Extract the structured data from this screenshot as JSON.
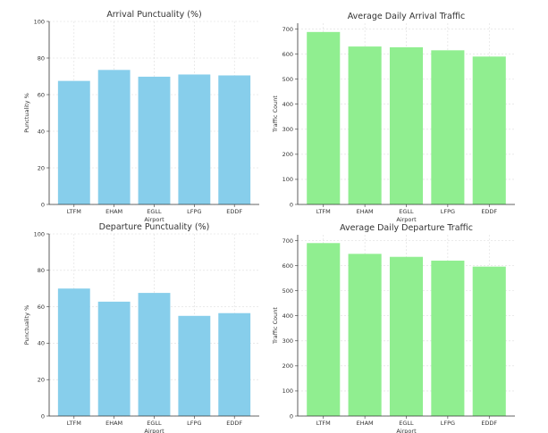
{
  "chart_data": [
    {
      "type": "bar",
      "title": "Arrival Punctuality (%)",
      "xlabel": "Airport",
      "ylabel": "Punctuality %",
      "categories": [
        "LTFM",
        "EHAM",
        "EGLL",
        "LFPG",
        "EDDF"
      ],
      "values": [
        67.5,
        73.5,
        69.8,
        71,
        70.5
      ],
      "ylim": [
        0,
        100
      ],
      "yticks": [
        0,
        20,
        40,
        60,
        80,
        100
      ],
      "grid": true,
      "color": "#87ceeb"
    },
    {
      "type": "bar",
      "title": "Average Daily Arrival Traffic",
      "xlabel": "Airport",
      "ylabel": "Traffic Count",
      "categories": [
        "LTFM",
        "EHAM",
        "EGLL",
        "LFPG",
        "EDDF"
      ],
      "values": [
        688,
        630,
        627,
        615,
        590
      ],
      "ylim": [
        0,
        723
      ],
      "yticks": [
        0,
        100,
        200,
        300,
        400,
        500,
        600,
        700
      ],
      "grid": true,
      "color": "#90ee90"
    },
    {
      "type": "bar",
      "title": "Departure Punctuality (%)",
      "xlabel": "Airport",
      "ylabel": "Punctuality %",
      "categories": [
        "LTFM",
        "EHAM",
        "EGLL",
        "LFPG",
        "EDDF"
      ],
      "values": [
        70,
        62.8,
        67.6,
        55,
        56.5
      ],
      "ylim": [
        0,
        100
      ],
      "yticks": [
        0,
        20,
        40,
        60,
        80,
        100
      ],
      "grid": true,
      "color": "#87ceeb"
    },
    {
      "type": "bar",
      "title": "Average Daily Departure Traffic",
      "xlabel": "Airport",
      "ylabel": "Traffic Count",
      "categories": [
        "LTFM",
        "EHAM",
        "EGLL",
        "LFPG",
        "EDDF"
      ],
      "values": [
        690,
        647,
        635,
        620,
        596
      ],
      "ylim": [
        0,
        723
      ],
      "yticks": [
        0,
        100,
        200,
        300,
        400,
        500,
        600,
        700
      ],
      "grid": true,
      "color": "#90ee90"
    }
  ]
}
